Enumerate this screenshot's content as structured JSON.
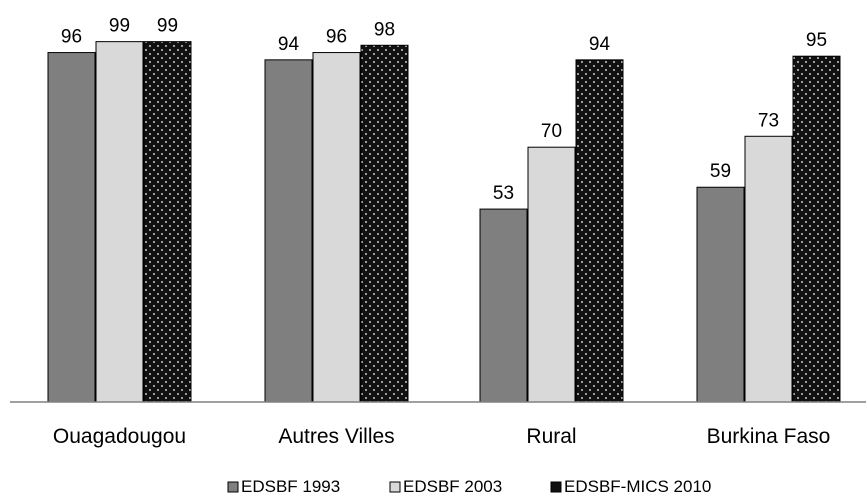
{
  "chart_data": {
    "type": "bar",
    "categories": [
      "Ouagadougou",
      "Autres Villes",
      "Rural",
      "Burkina Faso"
    ],
    "series": [
      {
        "name": "EDSBF 1993",
        "values": [
          96,
          94,
          53,
          59
        ],
        "color": "#7f7f7f",
        "pattern": "solid"
      },
      {
        "name": "EDSBF 2003",
        "values": [
          99,
          96,
          70,
          73
        ],
        "color": "#d9d9d9",
        "pattern": "solid"
      },
      {
        "name": "EDSBF-MICS 2010",
        "values": [
          99,
          98,
          94,
          95
        ],
        "color": "#111111",
        "pattern": "dotted"
      }
    ],
    "ylim": [
      0,
      100
    ],
    "data_labels": true,
    "grid": false,
    "legend_position": "bottom"
  }
}
